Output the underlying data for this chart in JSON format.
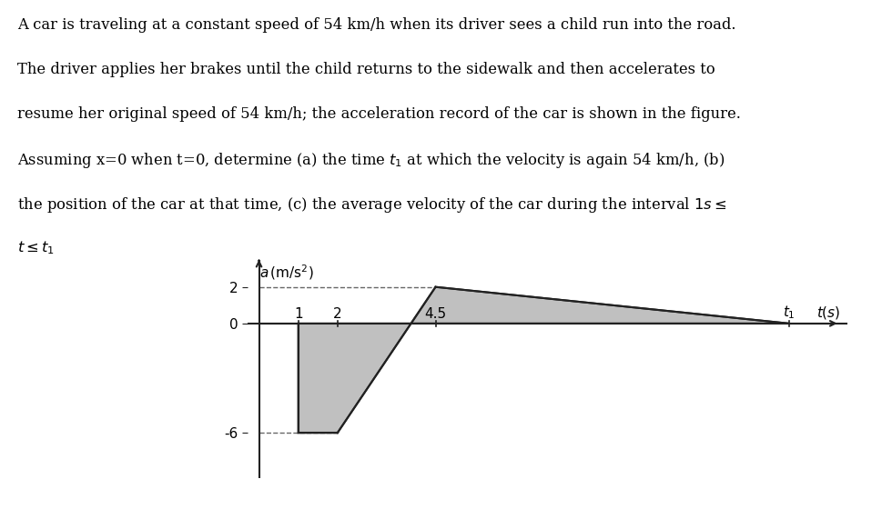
{
  "title_lines": [
    "A car is traveling at a constant speed of 54 km/h when its driver sees a child run into the road.",
    "The driver applies her brakes until the child returns to the sidewalk and then accelerates to",
    "resume her original speed of 54 km/h; the acceleration record of the car is shown in the figure.",
    "Assuming x=0 when t=0, determine (a) the time $t_1$ at which the velocity is again 54 km/h, (b)",
    "the position of the car at that time, (c) the average velocity of the car during the interval $1s \\leq$",
    "$t \\leq t_1$"
  ],
  "t1_val": 13.5,
  "t_zero_crossing": 3.875,
  "fill_color": "#c0c0c0",
  "line_color": "#222222",
  "dashed_color": "#666666",
  "background_color": "#ffffff",
  "fig_width": 9.7,
  "fig_height": 5.6,
  "dpi": 100,
  "ylim": [
    -8.5,
    3.5
  ],
  "xlim": [
    -0.3,
    15.0
  ]
}
